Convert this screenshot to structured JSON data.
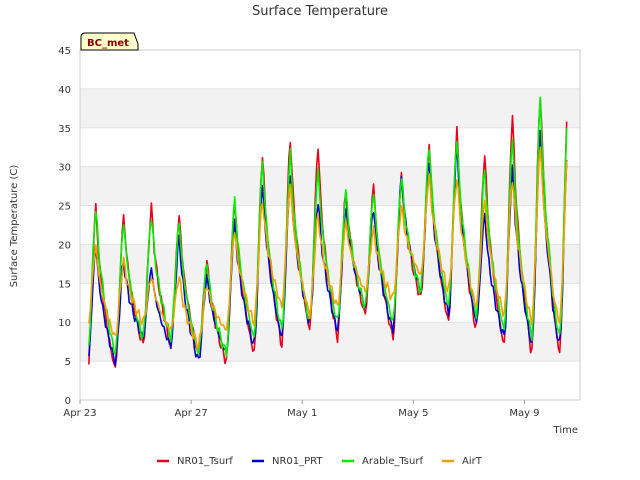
{
  "chart_data": {
    "type": "line",
    "title": "Surface Temperature",
    "badge": "BC_met",
    "xlabel": "Time",
    "ylabel": "Surface Temperature (C)",
    "ylim": [
      0,
      45
    ],
    "yticks": [
      0,
      5,
      10,
      15,
      20,
      25,
      30,
      35,
      40,
      45
    ],
    "xlim": [
      "Apr 23",
      "May 11"
    ],
    "xticks": [
      "Apr 23",
      "Apr 27",
      "May 1",
      "May 5",
      "May 9"
    ],
    "grid": "alternating horizontal bands",
    "legend_position": "bottom",
    "series": [
      {
        "name": "NR01_Tsurf",
        "color": "#e8001c",
        "daily_min": [
          3,
          4,
          7,
          7,
          6,
          5,
          6,
          7,
          9,
          8,
          11,
          8,
          13,
          10,
          9,
          7,
          6
        ],
        "daily_max": [
          25,
          24,
          25,
          24,
          18,
          26,
          32,
          34,
          33,
          27,
          28,
          29,
          33,
          35,
          32,
          37,
          40
        ]
      },
      {
        "name": "NR01_PRT",
        "color": "#0000cc",
        "daily_min": [
          4,
          5,
          8,
          7,
          5,
          6,
          7,
          8,
          10,
          9,
          12,
          9,
          14,
          11,
          10,
          8,
          7
        ],
        "daily_max": [
          20,
          18,
          17,
          21,
          16,
          23,
          28,
          29,
          26,
          25,
          25,
          29,
          31,
          33,
          24,
          30,
          35
        ]
      },
      {
        "name": "Arable_Tsurf",
        "color": "#00ee00",
        "daily_min": [
          5,
          6,
          8,
          8,
          6,
          6,
          8,
          9,
          10,
          10,
          12,
          10,
          14,
          12,
          11,
          9,
          8
        ],
        "daily_max": [
          25,
          23,
          24,
          23,
          18,
          26,
          31,
          32,
          30,
          27,
          27,
          29,
          33,
          34,
          30,
          34,
          39
        ]
      },
      {
        "name": "AirT",
        "color": "#f0a000",
        "daily_min": [
          9,
          8,
          10,
          9,
          7,
          9,
          10,
          12,
          11,
          12,
          14,
          13,
          16,
          14,
          12,
          11,
          10
        ],
        "daily_max": [
          20,
          18,
          16,
          16,
          15,
          22,
          26,
          28,
          24,
          23,
          22,
          25,
          29,
          29,
          26,
          29,
          33
        ]
      }
    ]
  }
}
